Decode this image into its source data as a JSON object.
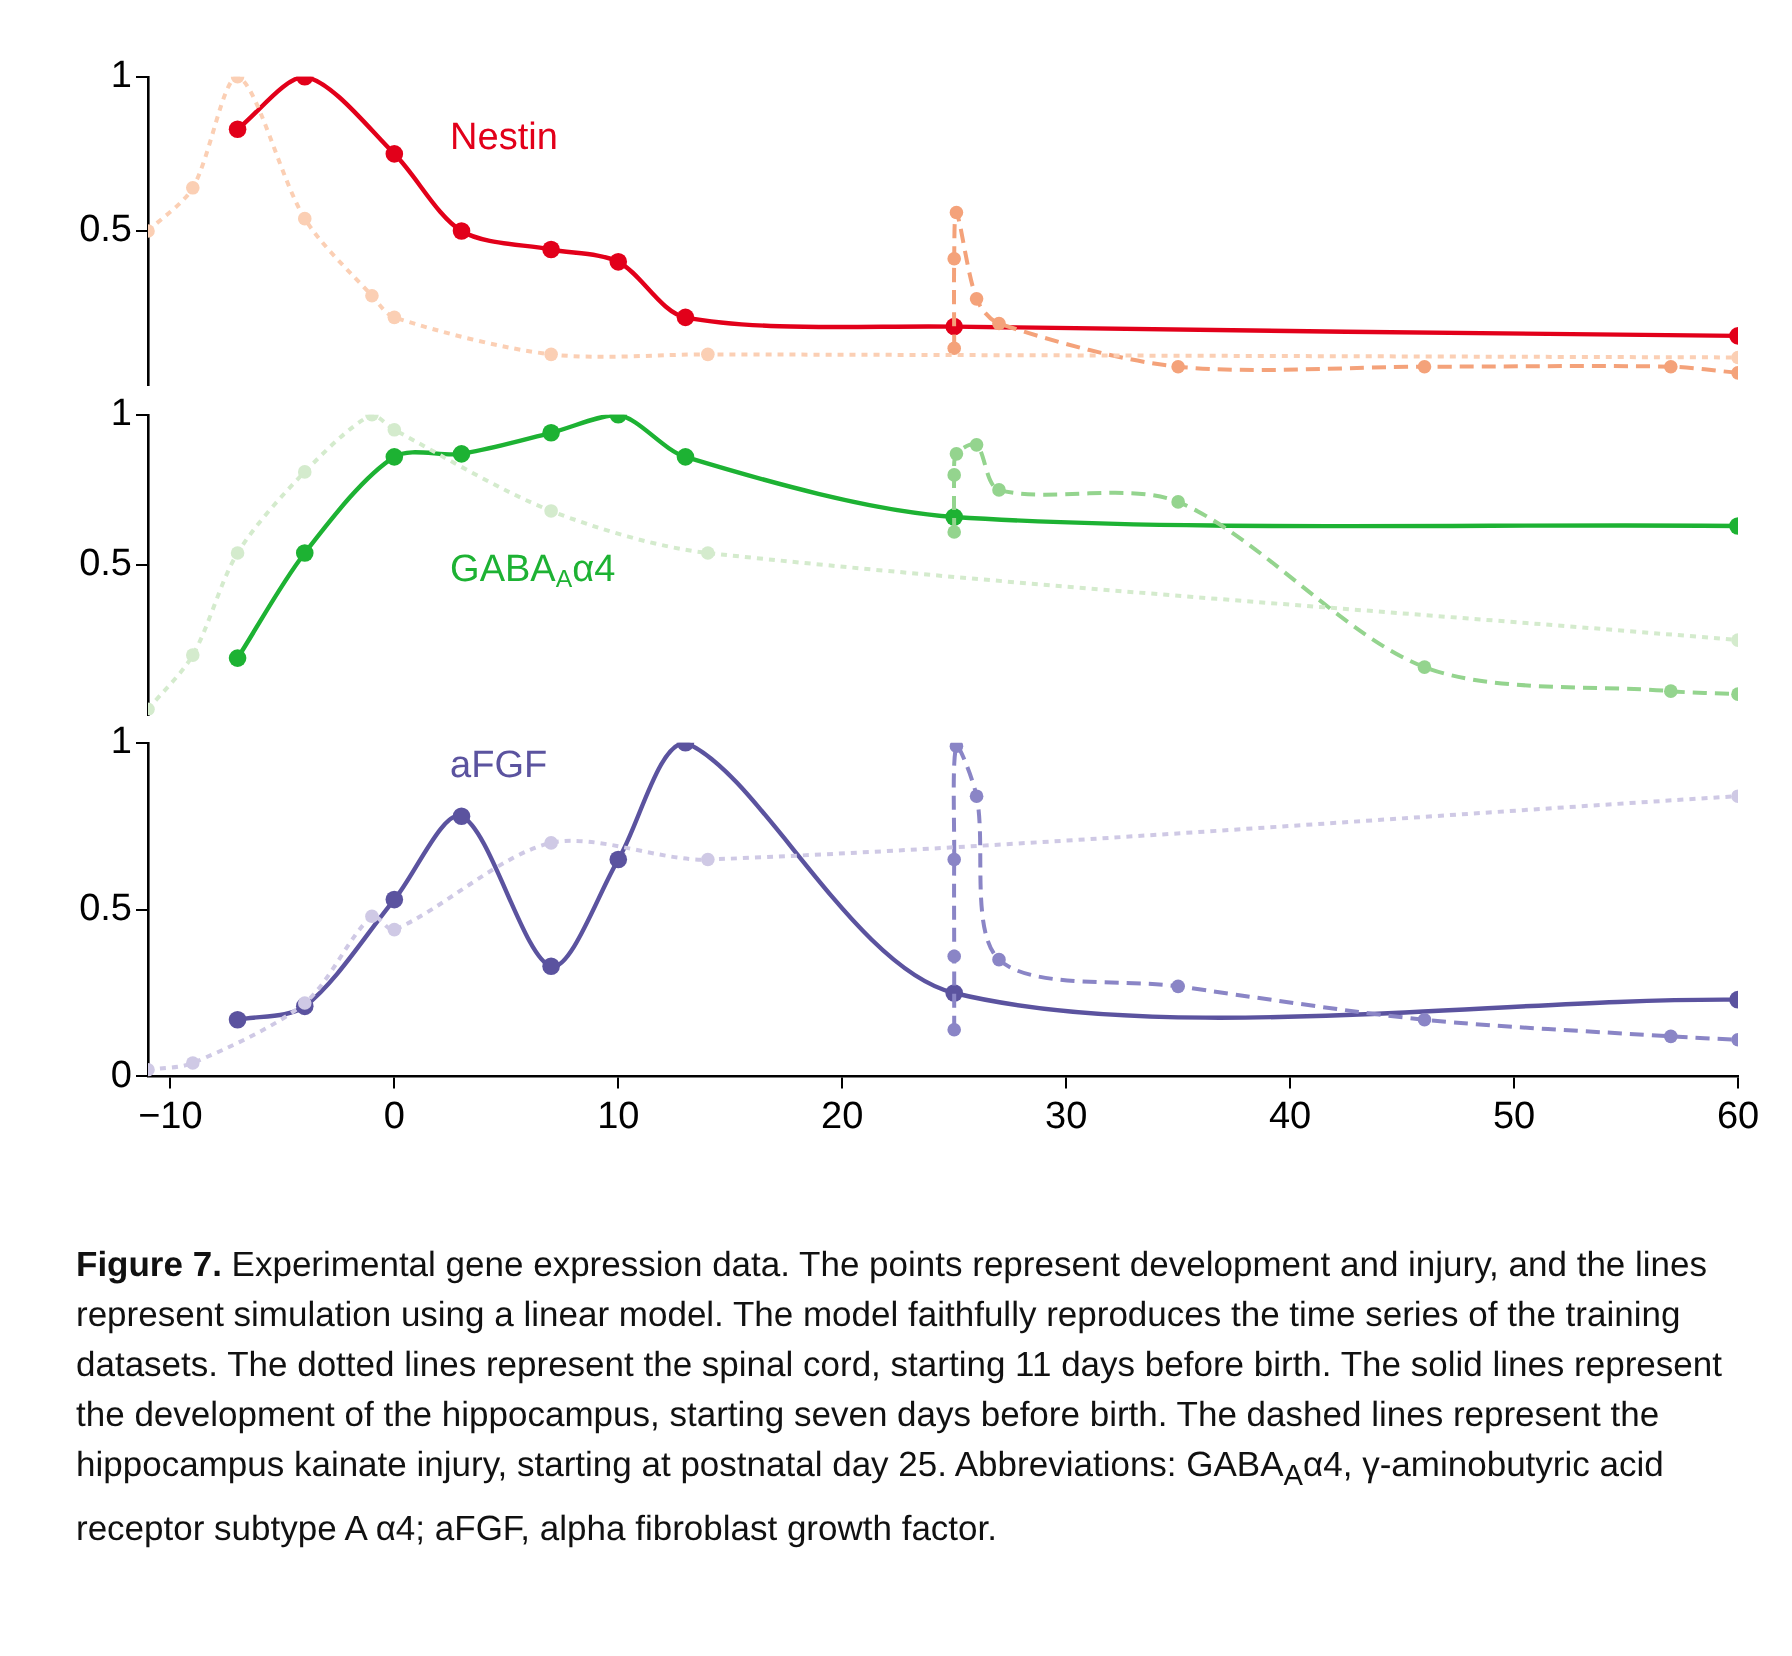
{
  "chart_data": [
    {
      "type": "line",
      "title": "Nestin",
      "xlim": [
        -11,
        60
      ],
      "ylim": [
        0,
        1
      ],
      "yticks": [
        0.5,
        1
      ],
      "tick_labels": "y",
      "grid": false,
      "legend": false,
      "marker": "circle",
      "series": [
        {
          "color": "#fbcfb4",
          "line_style": "dotted",
          "x": [
            -11,
            -9,
            -7,
            -4,
            -1,
            0,
            7,
            14,
            60
          ],
          "values": [
            0.5,
            0.64,
            1.0,
            0.54,
            0.29,
            0.22,
            0.1,
            0.1,
            0.09
          ]
        },
        {
          "color": "#f4a27a",
          "line_style": "dashed",
          "x": [
            25,
            25,
            25.1,
            26,
            27,
            35,
            46,
            57,
            60
          ],
          "values": [
            0.12,
            0.41,
            0.56,
            0.28,
            0.2,
            0.06,
            0.06,
            0.06,
            0.04
          ]
        },
        {
          "color": "#e2001a",
          "line_style": "solid",
          "x": [
            -7,
            -4,
            0,
            3,
            7,
            10,
            13,
            25,
            60
          ],
          "values": [
            0.83,
            1.0,
            0.75,
            0.5,
            0.44,
            0.4,
            0.22,
            0.19,
            0.16
          ]
        }
      ]
    },
    {
      "type": "line",
      "title": "GABA$_{A}$α4",
      "xlim": [
        -11,
        60
      ],
      "ylim": [
        0,
        1
      ],
      "yticks": [
        0.5,
        1
      ],
      "tick_labels": "y",
      "grid": false,
      "legend": false,
      "marker": "circle",
      "series": [
        {
          "color": "#d4ebcd",
          "line_style": "dotted",
          "x": [
            -11,
            -9,
            -7,
            -4,
            -1,
            0,
            7,
            14,
            60
          ],
          "values": [
            0.02,
            0.2,
            0.54,
            0.81,
            1.0,
            0.95,
            0.68,
            0.54,
            0.25
          ]
        },
        {
          "color": "#94d48e",
          "line_style": "dashed",
          "x": [
            25,
            25,
            25.1,
            26,
            27,
            35,
            46,
            57,
            60
          ],
          "values": [
            0.61,
            0.8,
            0.87,
            0.9,
            0.75,
            0.71,
            0.16,
            0.08,
            0.07
          ]
        },
        {
          "color": "#1db233",
          "line_style": "solid",
          "x": [
            -7,
            -4,
            0,
            3,
            7,
            10,
            13,
            25,
            60
          ],
          "values": [
            0.19,
            0.54,
            0.86,
            0.87,
            0.94,
            1.0,
            0.86,
            0.66,
            0.63
          ]
        }
      ]
    },
    {
      "type": "line",
      "title": "aFGF",
      "xlim": [
        -11,
        60
      ],
      "xticks": [
        {
          "value": -10,
          "label": "−10"
        },
        0,
        10,
        20,
        30,
        40,
        50,
        60
      ],
      "ylim": [
        0,
        1
      ],
      "yticks": [
        0,
        0.5,
        1
      ],
      "grid": false,
      "legend": false,
      "marker": "circle",
      "series": [
        {
          "color": "#cfc9e5",
          "line_style": "dotted",
          "x": [
            -11,
            -9,
            -4,
            -1,
            0,
            7,
            14,
            60
          ],
          "values": [
            0.02,
            0.04,
            0.22,
            0.48,
            0.44,
            0.7,
            0.65,
            0.84
          ]
        },
        {
          "color": "#8a85c6",
          "line_style": "dashed",
          "x": [
            25,
            25,
            25,
            25.1,
            26,
            27,
            35,
            46,
            57,
            60
          ],
          "values": [
            0.14,
            0.36,
            0.65,
            0.99,
            0.84,
            0.35,
            0.27,
            0.17,
            0.12,
            0.11
          ]
        },
        {
          "color": "#5b539f",
          "line_style": "solid",
          "x": [
            -7,
            -4,
            0,
            3,
            7,
            10,
            13,
            25,
            60
          ],
          "values": [
            0.17,
            0.21,
            0.53,
            0.78,
            0.33,
            0.65,
            1.0,
            0.25,
            0.23
          ]
        }
      ],
      "annotations": [
        "Figure 7.",
        "Experimental gene expression data. The points represent development and injury, and the lines represent simulation using a linear model. The model faithfully reproduces the time series of the training datasets. The dotted lines represent the spinal cord, starting 11 days before birth. The solid lines represent the development of the hippocampus, starting seven days before birth. The dashed lines represent the hippocampus kainate injury, starting at postnatal day 25. Abbreviations: GABA$_{A}$α4, γ-aminobutyric acid receptor subtype A α4; aFGF, alpha fibroblast growth factor."
      ]
    }
  ]
}
